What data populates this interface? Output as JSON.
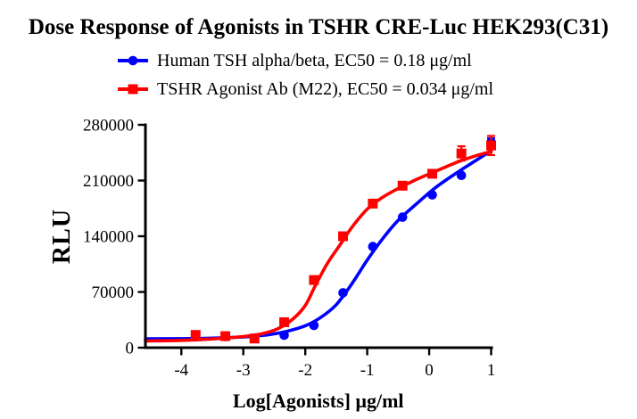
{
  "title": "Dose Response of Agonists in TSHR CRE-Luc HEK293(C31)",
  "chart_data": {
    "type": "scatter",
    "subtype": "dose-response sigmoid fit curves with point markers",
    "title": "Dose Response of Agonists in TSHR CRE-Luc HEK293(C31)",
    "xlabel": "Log[Agonists] μg/ml",
    "ylabel": "RLU",
    "xlim": [
      -4.58,
      1.0
    ],
    "ylim": [
      0,
      280000
    ],
    "x_ticks": [
      -4,
      -3,
      -2,
      -1,
      0,
      1
    ],
    "y_ticks": [
      0,
      70000,
      140000,
      210000,
      280000
    ],
    "grid": false,
    "legend_position": "top-center above plot",
    "background": "#ffffff",
    "axis_color": "#000000",
    "x": [
      -3.77,
      -3.29,
      -2.82,
      -2.34,
      -1.86,
      -1.39,
      -0.91,
      -0.43,
      0.05,
      0.52,
      1.0
    ],
    "series": [
      {
        "name": "Human TSH alpha/beta",
        "legend_label": "Human TSH alpha/beta, EC50 = 0.18 μg/ml",
        "ec50": "0.18 μg/ml",
        "color": "#0000ff",
        "marker": "circle",
        "values": [
          15500,
          14000,
          12000,
          15700,
          28000,
          69000,
          127000,
          164000,
          192000,
          216500,
          258000
        ],
        "errors": [
          0,
          0,
          0,
          0,
          0,
          0,
          0,
          0,
          0,
          0,
          5000
        ],
        "curve_x": [
          -4.58,
          -4.0,
          -3.5,
          -3.0,
          -2.6,
          -2.3,
          -2.0,
          -1.75,
          -1.5,
          -1.25,
          -1.0,
          -0.75,
          -0.5,
          -0.2,
          0.1,
          0.45,
          0.75,
          1.0
        ],
        "curve_y": [
          11200,
          11300,
          12000,
          13500,
          16200,
          20500,
          27500,
          38000,
          54000,
          80000,
          110000,
          137000,
          160000,
          181000,
          201000,
          220000,
          235000,
          247500
        ]
      },
      {
        "name": "TSHR Agonist Ab (M22)",
        "legend_label": "TSHR Agonist Ab (M22), EC50 = 0.034 μg/ml",
        "ec50": "0.034 μg/ml",
        "color": "#ff0000",
        "marker": "square",
        "values": [
          16000,
          14500,
          11500,
          32000,
          85000,
          140000,
          181000,
          203500,
          218500,
          244000,
          254000
        ],
        "errors": [
          0,
          0,
          0,
          0,
          0,
          0,
          0,
          0,
          0,
          9000,
          12000
        ],
        "curve_x": [
          -4.58,
          -4.0,
          -3.5,
          -3.0,
          -2.7,
          -2.45,
          -2.2,
          -2.0,
          -1.85,
          -1.65,
          -1.45,
          -1.25,
          -1.0,
          -0.75,
          -0.5,
          -0.2,
          0.1,
          0.45,
          0.75,
          1.0
        ],
        "curve_y": [
          8400,
          9200,
          11000,
          14000,
          17500,
          23500,
          36000,
          53000,
          76000,
          105000,
          128000,
          151000,
          174000,
          189000,
          200000,
          211500,
          221500,
          233000,
          241000,
          246400
        ]
      }
    ]
  }
}
